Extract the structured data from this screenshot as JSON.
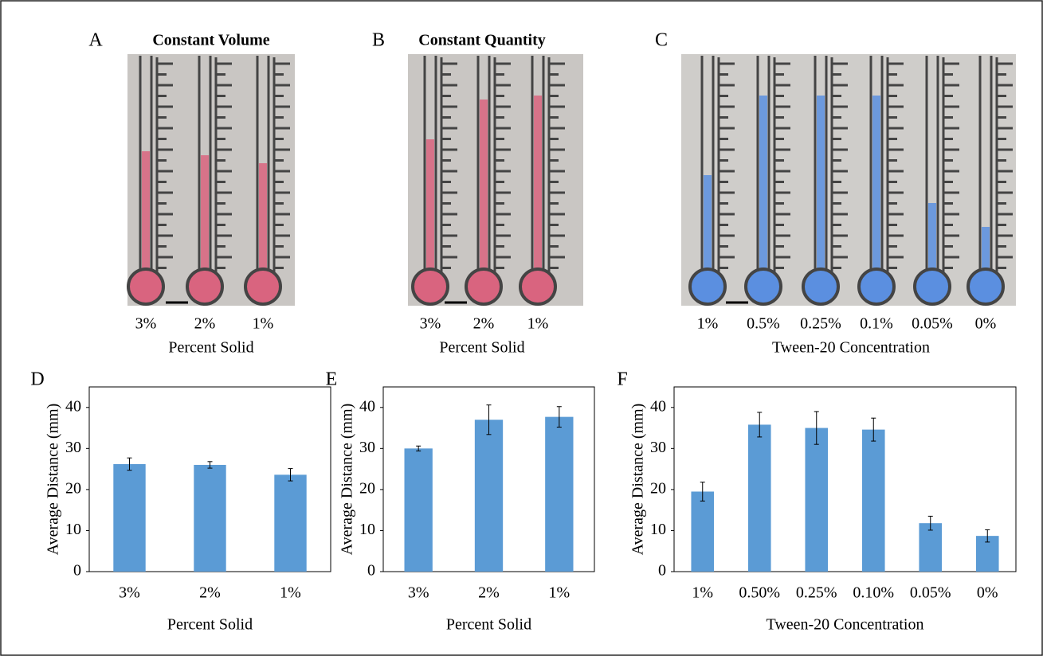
{
  "photo_panels": [
    {
      "letter": "A",
      "title": "Constant Volume",
      "labels": [
        "3%",
        "2%",
        "1%"
      ],
      "axis_label": "Percent Solid"
    },
    {
      "letter": "B",
      "title": "Constant Quantity",
      "labels": [
        "3%",
        "2%",
        "1%"
      ],
      "axis_label": "Percent Solid"
    },
    {
      "letter": "C",
      "labels": [
        "1%",
        "0.5%",
        "0.25%",
        "0.1%",
        "0.05%",
        "0%"
      ],
      "axis_label": "Tween-20 Concentration"
    }
  ],
  "chart_data": [
    {
      "type": "bar",
      "panel_label": "D",
      "categories": [
        "3%",
        "2%",
        "1%"
      ],
      "values": [
        26.2,
        26.0,
        23.6
      ],
      "errors": [
        1.5,
        0.8,
        1.5
      ],
      "color": "#5b9bd5",
      "xlabel": "Percent Solid",
      "ylabel": "Average Distance (mm)",
      "ylim": [
        0,
        45
      ],
      "yticks": [
        0,
        10,
        20,
        30,
        40
      ]
    },
    {
      "type": "bar",
      "panel_label": "E",
      "categories": [
        "3%",
        "2%",
        "1%"
      ],
      "values": [
        30.0,
        37.0,
        37.7
      ],
      "errors": [
        0.6,
        3.6,
        2.5
      ],
      "color": "#5b9bd5",
      "xlabel": "Percent Solid",
      "ylabel": "Average Distance (mm)",
      "ylim": [
        0,
        45
      ],
      "yticks": [
        0,
        10,
        20,
        30,
        40
      ]
    },
    {
      "type": "bar",
      "panel_label": "F",
      "categories": [
        "1%",
        "0.50%",
        "0.25%",
        "0.10%",
        "0.05%",
        "0%"
      ],
      "values": [
        19.5,
        35.8,
        35.0,
        34.6,
        11.8,
        8.7
      ],
      "errors": [
        2.3,
        3.0,
        4.0,
        2.8,
        1.7,
        1.5
      ],
      "color": "#5b9bd5",
      "xlabel": "Tween-20 Concentration",
      "ylabel": "Average Distance (mm)",
      "ylim": [
        0,
        45
      ],
      "yticks": [
        0,
        10,
        20,
        30,
        40
      ]
    }
  ]
}
